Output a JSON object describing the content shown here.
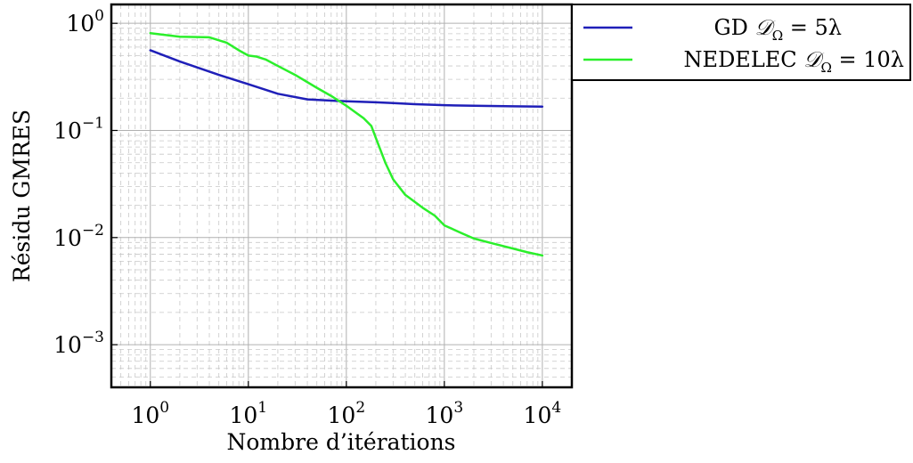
{
  "chart_data": {
    "type": "line",
    "xlabel": "Nombre d’itérations",
    "ylabel": "Résidu GMRES",
    "xscale": "log",
    "yscale": "log",
    "xlim": [
      0.4,
      20000
    ],
    "ylim": [
      0.0004,
      1.5
    ],
    "grid": true,
    "legend_position": "outside-top-right",
    "x_ticks": [
      {
        "base": "10",
        "exp": "0",
        "value": 1
      },
      {
        "base": "10",
        "exp": "1",
        "value": 10
      },
      {
        "base": "10",
        "exp": "2",
        "value": 100
      },
      {
        "base": "10",
        "exp": "3",
        "value": 1000
      },
      {
        "base": "10",
        "exp": "4",
        "value": 10000
      }
    ],
    "y_ticks": [
      {
        "base": "10",
        "exp": "0",
        "value": 1
      },
      {
        "base": "10",
        "exp": "−1",
        "value": 0.1
      },
      {
        "base": "10",
        "exp": "−2",
        "value": 0.01
      },
      {
        "base": "10",
        "exp": "−3",
        "value": 0.001
      }
    ],
    "series": [
      {
        "name_prefix": "GD ",
        "name_math": "𝒟",
        "name_sub": "Ω",
        "name_suffix": " = 5λ",
        "color": "#1f1fb8",
        "x": [
          1,
          2,
          5,
          10,
          20,
          40,
          70,
          100,
          200,
          300,
          500,
          1000,
          2000,
          5000,
          10000
        ],
        "y": [
          0.56,
          0.44,
          0.33,
          0.27,
          0.22,
          0.195,
          0.19,
          0.187,
          0.183,
          0.18,
          0.176,
          0.172,
          0.17,
          0.168,
          0.167
        ]
      },
      {
        "name_prefix": "NEDELEC ",
        "name_math": "𝒟",
        "name_sub": "Ω",
        "name_suffix": " = 10λ",
        "color": "#2bef2b",
        "x": [
          1,
          2,
          4,
          6,
          8,
          10,
          12,
          15,
          20,
          30,
          50,
          70,
          100,
          150,
          180,
          200,
          250,
          300,
          400,
          600,
          800,
          1000,
          1500,
          2000,
          3000,
          5000,
          7000,
          10000
        ],
        "y": [
          0.81,
          0.75,
          0.74,
          0.66,
          0.56,
          0.5,
          0.49,
          0.46,
          0.4,
          0.33,
          0.25,
          0.21,
          0.17,
          0.13,
          0.11,
          0.085,
          0.05,
          0.035,
          0.025,
          0.019,
          0.016,
          0.013,
          0.011,
          0.0098,
          0.0089,
          0.0079,
          0.0073,
          0.0068
        ]
      }
    ]
  }
}
